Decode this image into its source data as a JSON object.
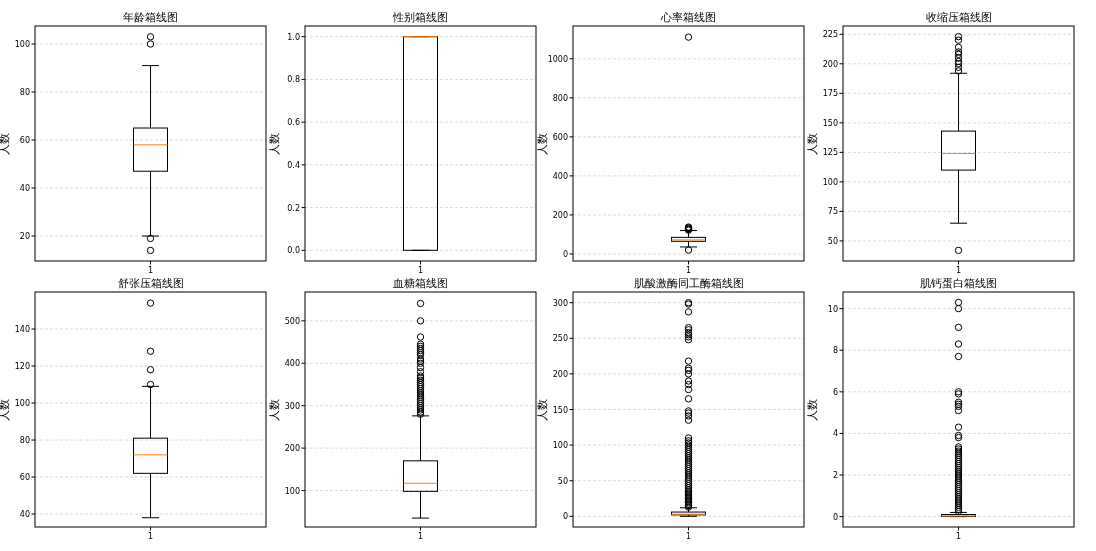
{
  "chart_data": [
    {
      "type": "box",
      "title": "年龄箱线图",
      "ylabel": "人数",
      "categories": [
        "1"
      ],
      "grid": "y",
      "ylim": [
        9.6,
        107.5
      ],
      "yticks": [
        20,
        40,
        60,
        80,
        100
      ],
      "boxes": [
        {
          "low": 20,
          "q1": 47,
          "median": 58,
          "q3": 65,
          "high": 91,
          "outliers": [
            14,
            19,
            100,
            103
          ]
        }
      ]
    },
    {
      "type": "box",
      "title": "性别箱线图",
      "ylabel": "人数",
      "categories": [
        "1"
      ],
      "grid": "y",
      "ylim": [
        -0.05,
        1.05
      ],
      "yticks": [
        {
          "value": 0,
          "label": "0.0"
        },
        {
          "value": 0.2,
          "label": "0.2"
        },
        {
          "value": 0.4,
          "label": "0.4"
        },
        {
          "value": 0.6,
          "label": "0.6"
        },
        {
          "value": 0.8,
          "label": "0.8"
        },
        {
          "value": 1,
          "label": "1.0"
        }
      ],
      "boxes": [
        {
          "low": 0,
          "q1": 0,
          "median": 1,
          "q3": 1,
          "high": 1
        }
      ]
    },
    {
      "type": "box",
      "title": "心率箱线图",
      "ylabel": "人数",
      "categories": [
        "1"
      ],
      "grid": "y",
      "ylim": [
        -36,
        1168
      ],
      "yticks": [
        0,
        200,
        400,
        600,
        800,
        1000
      ],
      "boxes": [
        {
          "low": 36,
          "q1": 65,
          "median": 72,
          "q3": 85,
          "high": 120,
          "outliers": [
            20,
            122,
            126,
            130,
            134,
            138,
            1111
          ]
        }
      ]
    },
    {
      "type": "box",
      "title": "收缩压箱线图",
      "ylabel": "人数",
      "categories": [
        "1"
      ],
      "grid": "y",
      "ylim": [
        33,
        232
      ],
      "yticks": [
        50,
        75,
        100,
        125,
        150,
        175,
        200,
        225
      ],
      "boxes": [
        {
          "low": 65,
          "q1": 110,
          "median": 124,
          "q3": 143,
          "high": 192,
          "outliers": [
            42,
            194,
            197,
            200,
            202,
            205,
            208,
            210,
            214,
            220,
            223
          ]
        }
      ]
    },
    {
      "type": "box",
      "title": "舒张压箱线图",
      "ylabel": "人数",
      "categories": [
        "1"
      ],
      "grid": "y",
      "ylim": [
        33,
        160
      ],
      "yticks": [
        40,
        60,
        80,
        100,
        120,
        140
      ],
      "boxes": [
        {
          "low": 38,
          "q1": 62,
          "median": 72,
          "q3": 81,
          "high": 109,
          "outliers": [
            110,
            118,
            128,
            154
          ]
        }
      ]
    },
    {
      "type": "box",
      "title": "血糖箱线图",
      "ylabel": "人数",
      "categories": [
        "1"
      ],
      "grid": "y",
      "ylim": [
        14,
        568
      ],
      "yticks": [
        100,
        200,
        300,
        400,
        500
      ],
      "boxes": [
        {
          "low": 35,
          "q1": 98,
          "median": 117,
          "q3": 170,
          "high": 276,
          "outliers": [
            280,
            285,
            290,
            295,
            300,
            305,
            310,
            315,
            320,
            325,
            330,
            335,
            340,
            345,
            350,
            355,
            360,
            365,
            370,
            380,
            390,
            400,
            405,
            410,
            420,
            425,
            430,
            435,
            440,
            445,
            462,
            500,
            541
          ]
        }
      ]
    },
    {
      "type": "box",
      "title": "肌酸激酶同工酶箱线图",
      "ylabel": "人数",
      "categories": [
        "1"
      ],
      "grid": "y",
      "ylim": [
        -15,
        315
      ],
      "yticks": [
        0,
        50,
        100,
        150,
        200,
        250,
        300
      ],
      "boxes": [
        {
          "low": 0,
          "q1": 2,
          "median": 3,
          "q3": 6,
          "high": 12,
          "outliers": [
            13,
            15,
            17,
            19,
            21,
            23,
            25,
            27,
            29,
            31,
            33,
            35,
            37,
            40,
            43,
            46,
            49,
            52,
            55,
            58,
            61,
            64,
            67,
            70,
            73,
            76,
            79,
            82,
            85,
            88,
            91,
            94,
            97,
            100,
            103,
            106,
            110,
            135,
            141,
            145,
            148,
            165,
            178,
            185,
            190,
            200,
            205,
            208,
            218,
            248,
            252,
            255,
            258,
            262,
            265,
            287,
            298,
            300
          ]
        }
      ]
    },
    {
      "type": "box",
      "title": "肌钙蛋白箱线图",
      "ylabel": "人数",
      "categories": [
        "1"
      ],
      "grid": "y",
      "ylim": [
        -0.5,
        10.8
      ],
      "yticks": [
        0,
        2,
        4,
        6,
        8,
        10
      ],
      "boxes": [
        {
          "low": 0,
          "q1": 0.01,
          "median": 0.03,
          "q3": 0.1,
          "high": 0.2,
          "outliers": [
            0.25,
            0.35,
            0.45,
            0.55,
            0.65,
            0.75,
            0.85,
            0.95,
            1.05,
            1.15,
            1.25,
            1.35,
            1.45,
            1.55,
            1.65,
            1.75,
            1.85,
            1.95,
            2.05,
            2.15,
            2.25,
            2.35,
            2.45,
            2.55,
            2.65,
            2.75,
            2.85,
            2.95,
            3.05,
            3.15,
            3.25,
            3.35,
            3.8,
            3.9,
            4.3,
            5.1,
            5.3,
            5.4,
            5.5,
            5.9,
            6.0,
            7.7,
            8.3,
            9.1,
            10.0,
            10.3
          ]
        }
      ]
    }
  ]
}
